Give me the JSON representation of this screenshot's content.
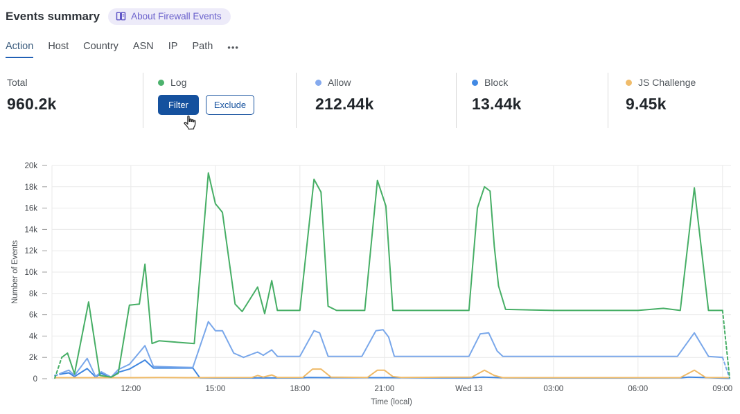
{
  "header": {
    "title": "Events summary",
    "about_badge": {
      "label": "About Firewall Events",
      "icon": "book-icon",
      "bg": "#edebf9",
      "color": "#6a61cc"
    }
  },
  "tabs": {
    "items": [
      {
        "label": "Action",
        "active": true
      },
      {
        "label": "Host",
        "active": false
      },
      {
        "label": "Country",
        "active": false
      },
      {
        "label": "ASN",
        "active": false
      },
      {
        "label": "IP",
        "active": false
      },
      {
        "label": "Path",
        "active": false
      }
    ],
    "more": "•••"
  },
  "stats": {
    "total": {
      "label": "Total",
      "value": "960.2k"
    },
    "log": {
      "label": "Log",
      "color": "#4cb26d",
      "filter_button": "Filter",
      "exclude_button": "Exclude"
    },
    "allow": {
      "label": "Allow",
      "color": "#85aaee",
      "value": "212.44k"
    },
    "block": {
      "label": "Block",
      "color": "#4189e4",
      "value": "13.44k"
    },
    "js_challenge": {
      "label": "JS Challenge",
      "color": "#f0bc6b",
      "value": "9.45k"
    }
  },
  "chart_data": {
    "type": "line",
    "xlabel": "Time (local)",
    "ylabel": "Number of Events",
    "x_unit": "decimal hours; 24 = Wed 13 00:00 (next day)",
    "xlim": [
      9.2,
      33.3
    ],
    "ylim": [
      0,
      20000
    ],
    "ytick_step": 2000,
    "yticks": [
      "0",
      "2k",
      "4k",
      "6k",
      "8k",
      "10k",
      "12k",
      "14k",
      "16k",
      "18k",
      "20k"
    ],
    "xticks": [
      {
        "t": 12,
        "label": "12:00"
      },
      {
        "t": 15,
        "label": "15:00"
      },
      {
        "t": 18,
        "label": "18:00"
      },
      {
        "t": 21,
        "label": "21:00"
      },
      {
        "t": 24,
        "label": "Wed 13"
      },
      {
        "t": 27,
        "label": "03:00"
      },
      {
        "t": 30,
        "label": "06:00"
      },
      {
        "t": 33,
        "label": "09:00"
      }
    ],
    "grid": true,
    "legend_position": "stats-row-above",
    "draw_order": [
      2,
      3,
      1,
      0
    ],
    "series": [
      {
        "name": "Log",
        "color": "#46ae65",
        "dashed_start": true,
        "dashed_end": true,
        "points": [
          [
            9.3,
            50
          ],
          [
            9.55,
            2000
          ],
          [
            9.75,
            2400
          ],
          [
            10.0,
            450
          ],
          [
            10.5,
            7200
          ],
          [
            10.9,
            300
          ],
          [
            11.3,
            150
          ],
          [
            11.55,
            500
          ],
          [
            11.95,
            6900
          ],
          [
            12.3,
            7000
          ],
          [
            12.5,
            10750
          ],
          [
            12.75,
            3300
          ],
          [
            13.0,
            3550
          ],
          [
            13.5,
            3450
          ],
          [
            14.25,
            3300
          ],
          [
            14.75,
            19300
          ],
          [
            15.0,
            16400
          ],
          [
            15.1,
            16100
          ],
          [
            15.25,
            15600
          ],
          [
            15.7,
            7000
          ],
          [
            15.95,
            6300
          ],
          [
            16.5,
            8600
          ],
          [
            16.75,
            6100
          ],
          [
            17.0,
            9200
          ],
          [
            17.2,
            6400
          ],
          [
            18.0,
            6400
          ],
          [
            18.5,
            18700
          ],
          [
            18.75,
            17500
          ],
          [
            19.0,
            6800
          ],
          [
            19.3,
            6400
          ],
          [
            20.3,
            6400
          ],
          [
            20.75,
            18600
          ],
          [
            21.05,
            16200
          ],
          [
            21.3,
            6400
          ],
          [
            24.0,
            6400
          ],
          [
            24.3,
            16000
          ],
          [
            24.55,
            18000
          ],
          [
            24.75,
            17600
          ],
          [
            24.9,
            12400
          ],
          [
            25.05,
            8700
          ],
          [
            25.3,
            6500
          ],
          [
            27.0,
            6400
          ],
          [
            30.0,
            6400
          ],
          [
            30.9,
            6600
          ],
          [
            31.5,
            6400
          ],
          [
            32.0,
            17900
          ],
          [
            32.5,
            6400
          ],
          [
            33.0,
            6400
          ],
          [
            33.25,
            100
          ]
        ]
      },
      {
        "name": "Allow",
        "color": "#79a7ea",
        "dashed_start": true,
        "dashed_end": true,
        "points": [
          [
            9.3,
            250
          ],
          [
            9.55,
            550
          ],
          [
            9.8,
            800
          ],
          [
            10.0,
            300
          ],
          [
            10.45,
            1900
          ],
          [
            10.75,
            200
          ],
          [
            10.95,
            650
          ],
          [
            11.3,
            150
          ],
          [
            11.55,
            850
          ],
          [
            11.95,
            1350
          ],
          [
            12.5,
            3100
          ],
          [
            12.8,
            1150
          ],
          [
            13.5,
            1100
          ],
          [
            14.2,
            1050
          ],
          [
            14.75,
            5350
          ],
          [
            15.0,
            4500
          ],
          [
            15.25,
            4500
          ],
          [
            15.65,
            2400
          ],
          [
            16.0,
            2000
          ],
          [
            16.5,
            2500
          ],
          [
            16.7,
            2200
          ],
          [
            17.0,
            2700
          ],
          [
            17.2,
            2100
          ],
          [
            18.0,
            2100
          ],
          [
            18.5,
            4500
          ],
          [
            18.7,
            4300
          ],
          [
            19.0,
            2100
          ],
          [
            20.2,
            2100
          ],
          [
            20.7,
            4500
          ],
          [
            20.95,
            4600
          ],
          [
            21.15,
            3900
          ],
          [
            21.35,
            2100
          ],
          [
            24.0,
            2100
          ],
          [
            24.4,
            4200
          ],
          [
            24.7,
            4300
          ],
          [
            25.0,
            2600
          ],
          [
            25.2,
            2100
          ],
          [
            28.0,
            2100
          ],
          [
            31.4,
            2100
          ],
          [
            32.0,
            4300
          ],
          [
            32.5,
            2100
          ],
          [
            33.0,
            2000
          ],
          [
            33.25,
            50
          ]
        ]
      },
      {
        "name": "Block",
        "color": "#3f86e0",
        "dashed_start": true,
        "dashed_end": false,
        "points": [
          [
            9.3,
            300
          ],
          [
            9.55,
            450
          ],
          [
            9.8,
            550
          ],
          [
            10.0,
            200
          ],
          [
            10.45,
            950
          ],
          [
            10.75,
            150
          ],
          [
            10.95,
            500
          ],
          [
            11.3,
            100
          ],
          [
            11.55,
            600
          ],
          [
            11.95,
            900
          ],
          [
            12.5,
            1750
          ],
          [
            12.8,
            1000
          ],
          [
            13.5,
            1000
          ],
          [
            14.2,
            1000
          ],
          [
            14.45,
            80
          ],
          [
            15.0,
            70
          ],
          [
            18.0,
            70
          ],
          [
            18.3,
            120
          ],
          [
            19.0,
            100
          ],
          [
            21.2,
            100
          ],
          [
            24.0,
            80
          ],
          [
            24.5,
            150
          ],
          [
            25.3,
            80
          ],
          [
            28.0,
            70
          ],
          [
            31.5,
            80
          ],
          [
            31.8,
            150
          ],
          [
            32.3,
            120
          ],
          [
            33.0,
            50
          ],
          [
            33.25,
            30
          ]
        ]
      },
      {
        "name": "JS Challenge",
        "color": "#efba67",
        "dashed_start": false,
        "dashed_end": false,
        "points": [
          [
            9.3,
            100
          ],
          [
            12.0,
            100
          ],
          [
            13.0,
            120
          ],
          [
            14.0,
            100
          ],
          [
            16.3,
            120
          ],
          [
            16.5,
            300
          ],
          [
            16.7,
            150
          ],
          [
            17.0,
            350
          ],
          [
            17.2,
            120
          ],
          [
            18.1,
            120
          ],
          [
            18.45,
            900
          ],
          [
            18.75,
            900
          ],
          [
            19.1,
            150
          ],
          [
            20.4,
            120
          ],
          [
            20.75,
            800
          ],
          [
            21.0,
            800
          ],
          [
            21.3,
            200
          ],
          [
            21.6,
            120
          ],
          [
            24.1,
            150
          ],
          [
            24.55,
            800
          ],
          [
            24.9,
            300
          ],
          [
            25.2,
            100
          ],
          [
            28.0,
            100
          ],
          [
            31.5,
            100
          ],
          [
            32.0,
            800
          ],
          [
            32.4,
            120
          ],
          [
            33.25,
            100
          ]
        ]
      }
    ]
  }
}
